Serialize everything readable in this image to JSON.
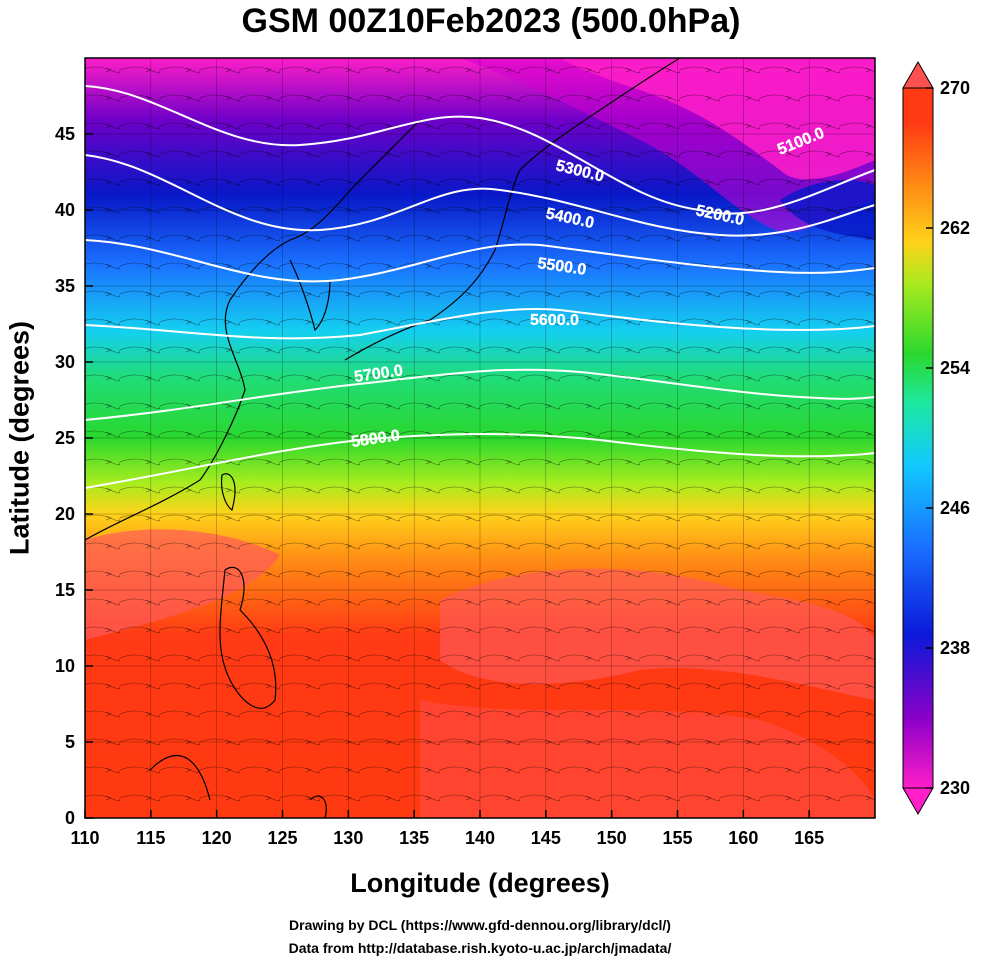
{
  "title": "GSM 00Z10Feb2023 (500.0hPa)",
  "x_axis": {
    "label": "Longitude (degrees)",
    "ticks": [
      "110",
      "115",
      "120",
      "125",
      "130",
      "135",
      "140",
      "145",
      "150",
      "155",
      "160",
      "165"
    ]
  },
  "y_axis": {
    "label": "Latitude  (degrees)",
    "ticks": [
      "0",
      "5",
      "10",
      "15",
      "20",
      "25",
      "30",
      "35",
      "40",
      "45"
    ]
  },
  "colorbar": {
    "ticks": [
      "230",
      "238",
      "246",
      "254",
      "262",
      "270"
    ],
    "colors": [
      "#ff1ec8",
      "#8a00c8",
      "#0b1ad8",
      "#1a6cff",
      "#12c8ff",
      "#1ee8a0",
      "#2ad82e",
      "#a8ea1e",
      "#ffd21a",
      "#ff8c14",
      "#ff3a14",
      "#ff5050"
    ]
  },
  "contours": [
    {
      "label": "5100.0"
    },
    {
      "label": "5200.0"
    },
    {
      "label": "5300.0"
    },
    {
      "label": "5400.0"
    },
    {
      "label": "5500.0"
    },
    {
      "label": "5600.0"
    },
    {
      "label": "5700.0"
    },
    {
      "label": "5800.0"
    }
  ],
  "credits": [
    "Drawing by DCL (https://www.gfd-dennou.org/library/dcl/)",
    "Data from http://database.rish.kyoto-u.ac.jp/arch/jmadata/"
  ]
}
